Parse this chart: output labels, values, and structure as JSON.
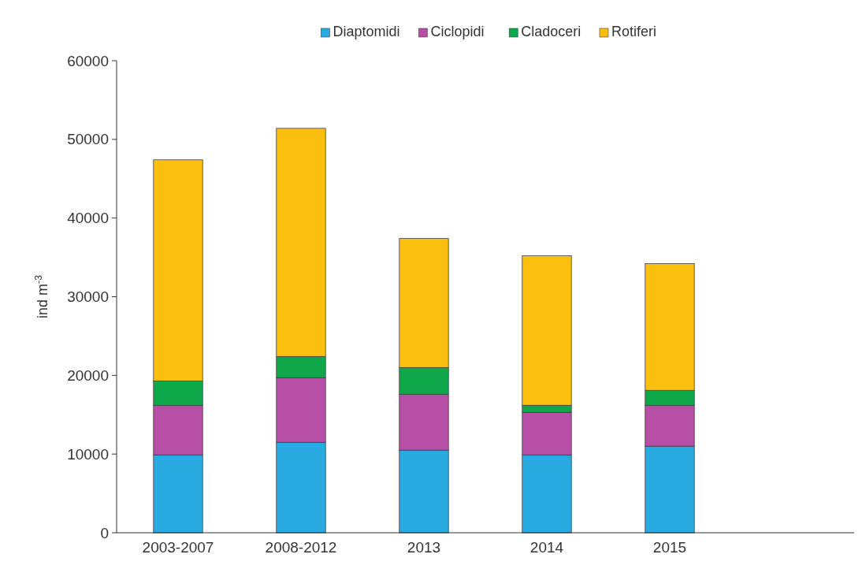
{
  "chart_data": {
    "type": "bar",
    "stacked": true,
    "ylabel": "ind m$^{-3}$",
    "categories": [
      "2003-2007",
      "2008-2012",
      "2013",
      "2014",
      "2015",
      null
    ],
    "series": [
      {
        "name": "Diaptomidi",
        "color": "#29abe2",
        "values": [
          9900,
          11500,
          10500,
          9900,
          11000,
          null
        ]
      },
      {
        "name": "Ciclopidi",
        "color": "#b84fa6",
        "values": [
          6300,
          8200,
          7100,
          5400,
          5200,
          null
        ]
      },
      {
        "name": "Cladoceri",
        "color": "#0ea84a",
        "values": [
          3100,
          2700,
          3400,
          900,
          1900,
          null
        ]
      },
      {
        "name": "Rotiferi",
        "color": "#fbbf0f",
        "values": [
          28100,
          29000,
          16400,
          19000,
          16100,
          null
        ]
      }
    ],
    "ylim": [
      0,
      60000
    ],
    "yticks": [
      0,
      10000,
      20000,
      30000,
      40000,
      50000,
      60000
    ],
    "legend": "top"
  }
}
